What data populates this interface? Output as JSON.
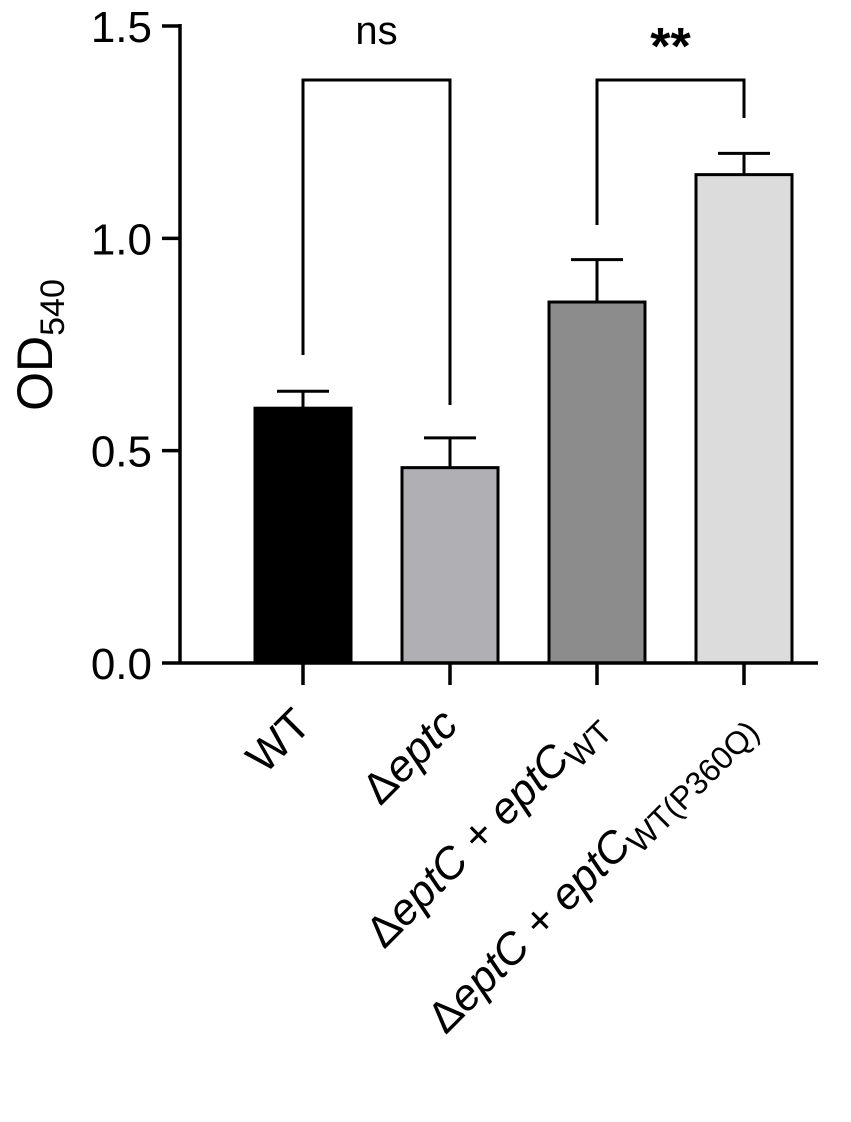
{
  "chart_data": {
    "type": "bar",
    "title": "",
    "ylabel": "OD",
    "ylabel_subscript": "540",
    "xlabel": "",
    "ylim": [
      0,
      1.5
    ],
    "yticks": [
      "0.0",
      "0.5",
      "1.0",
      "1.5"
    ],
    "ytick_values": [
      0,
      0.5,
      1.0,
      1.5
    ],
    "grid": false,
    "legend": "none",
    "categories": [
      {
        "delta": "",
        "main": "WT",
        "italic": false,
        "suffix": "",
        "sub": ""
      },
      {
        "delta": "Δ",
        "main": "eptc",
        "italic": true,
        "suffix": "",
        "sub": ""
      },
      {
        "delta": "Δ",
        "main": "eptC",
        "italic": true,
        "suffix": " + eptC",
        "sub": "WT"
      },
      {
        "delta": "Δ",
        "main": "eptC",
        "italic": true,
        "suffix": " + eptC",
        "sub": "WT(P360Q)"
      }
    ],
    "values": [
      0.6,
      0.46,
      0.85,
      1.15
    ],
    "errors": [
      0.04,
      0.07,
      0.1,
      0.05
    ],
    "colors": [
      "#000000",
      "#b0b0b4",
      "#8c8c8c",
      "#dcdcdc"
    ],
    "significance": [
      {
        "from": 0,
        "to": 1,
        "label": "ns"
      },
      {
        "from": 2,
        "to": 3,
        "label": "**"
      }
    ]
  }
}
